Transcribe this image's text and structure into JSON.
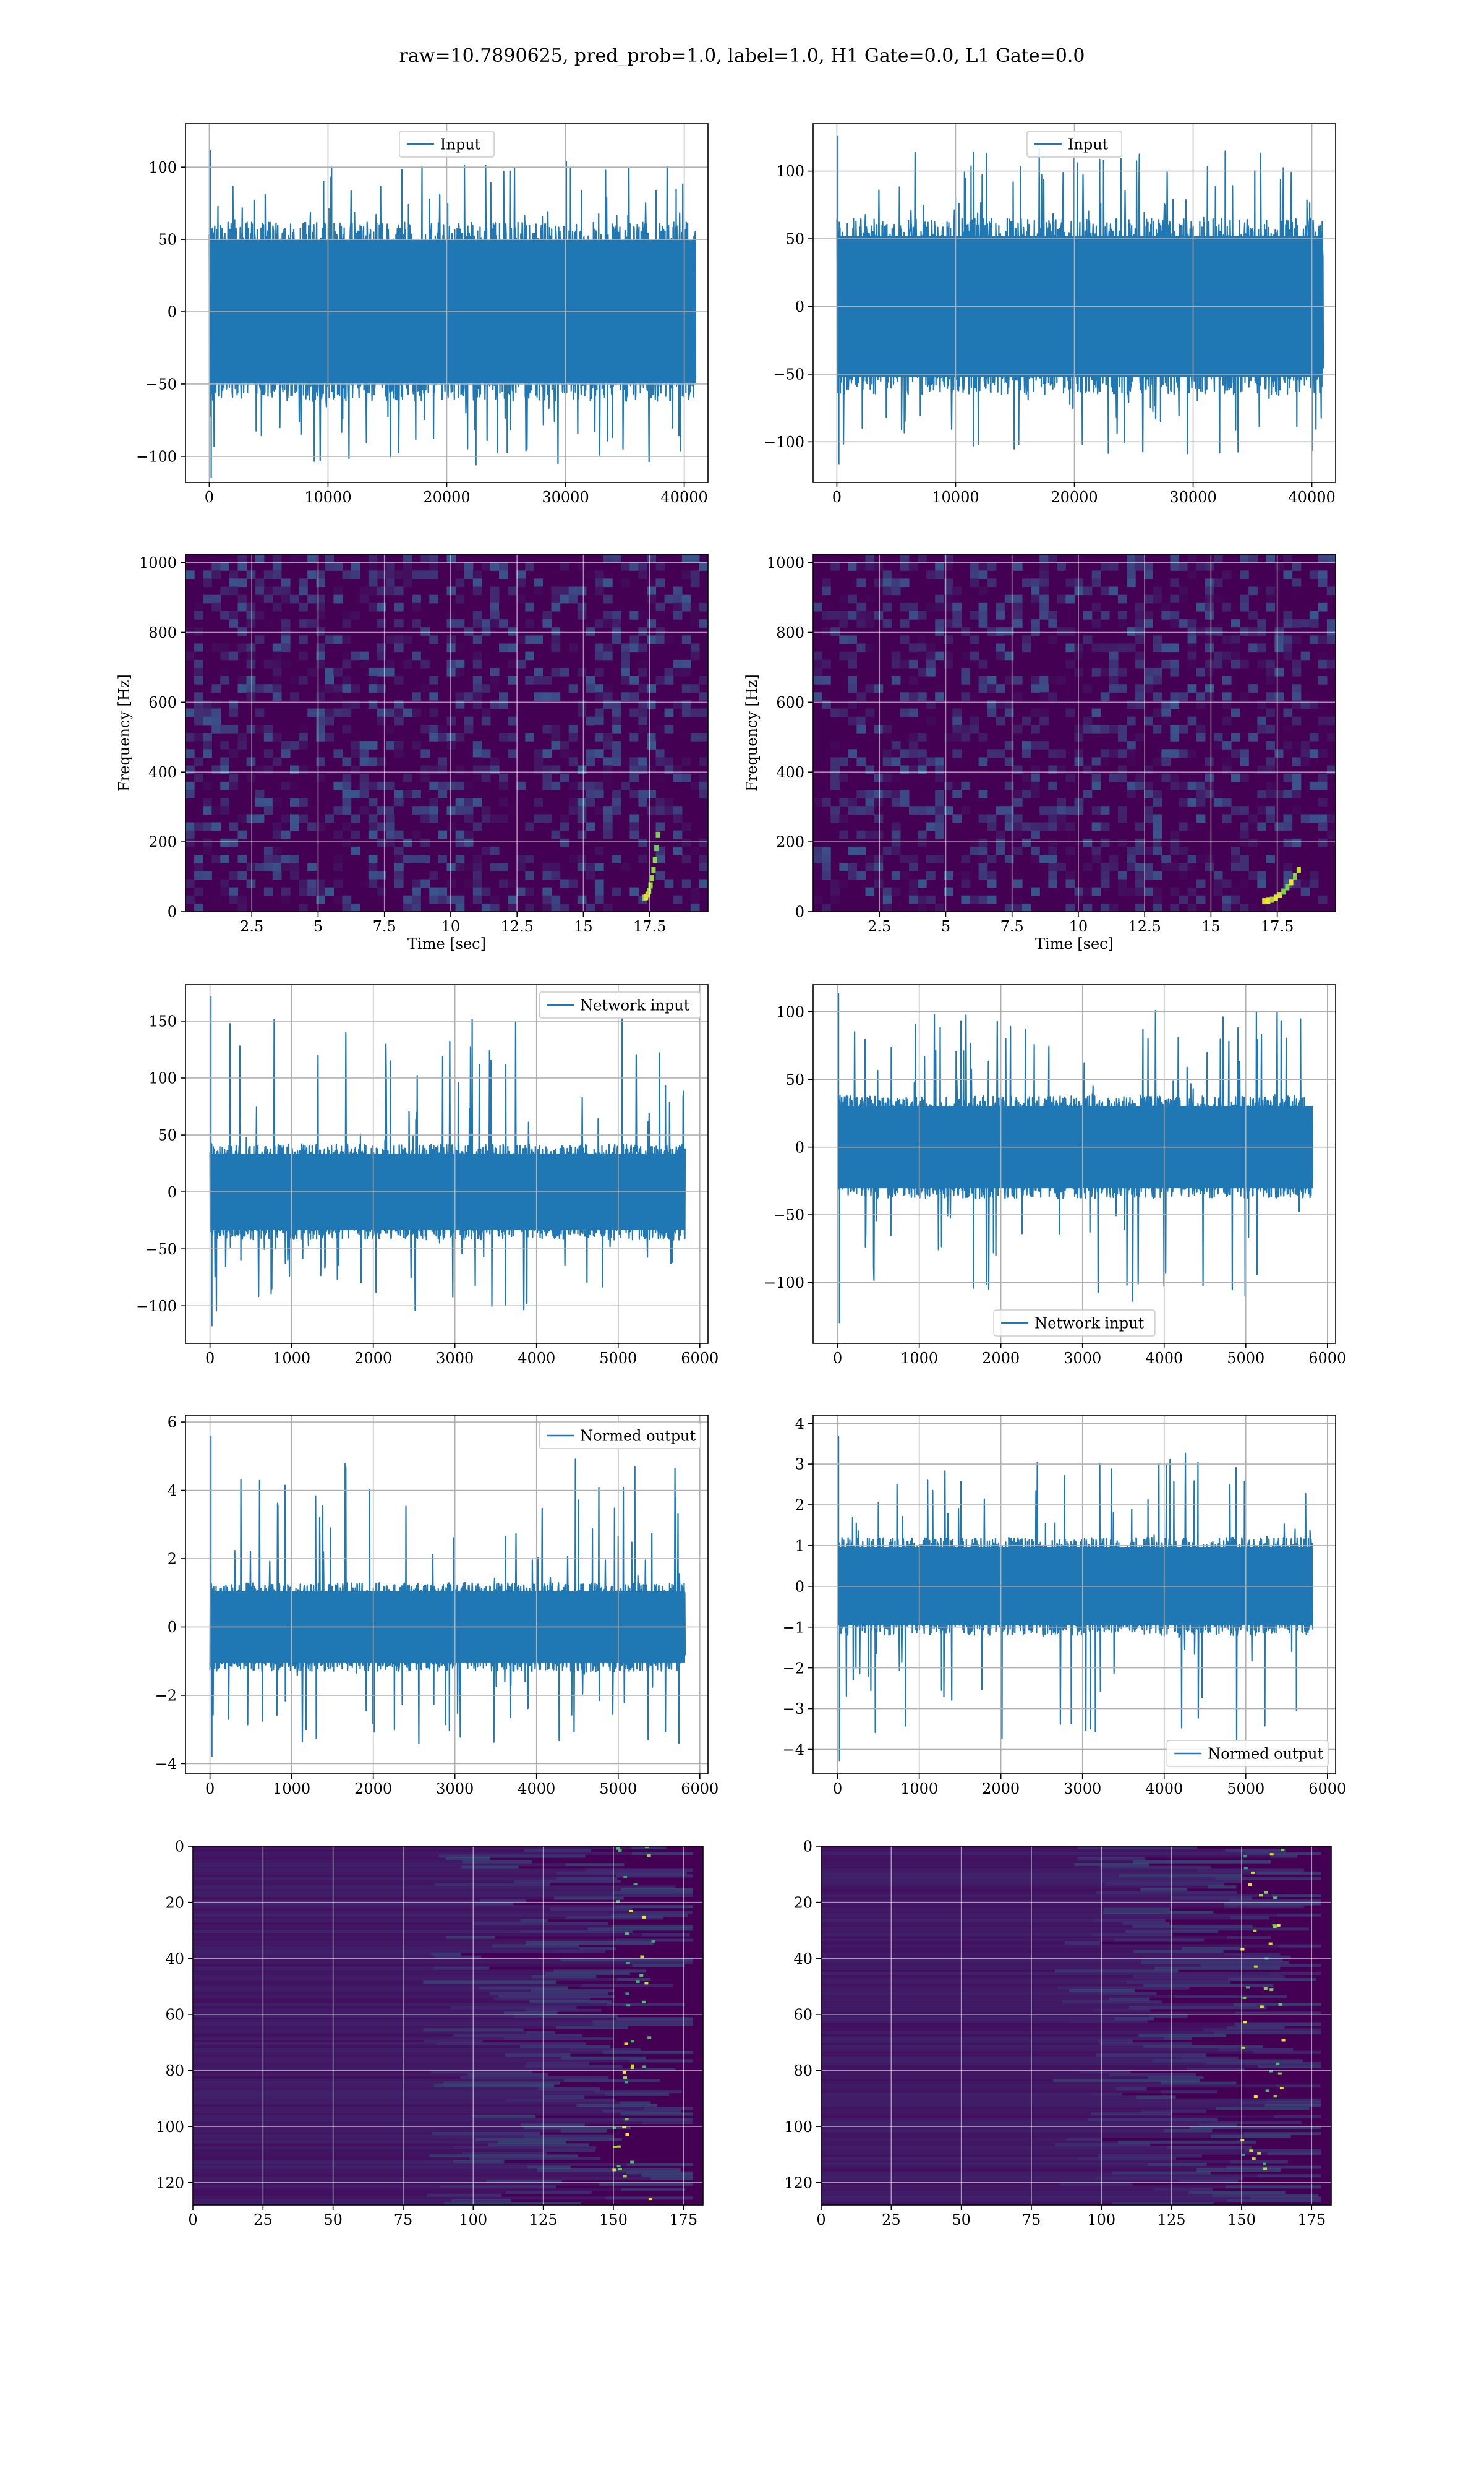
{
  "figure": {
    "suptitle": "raw=10.7890625, pred_prob=1.0, label=1.0, H1 Gate=0.0, L1 Gate=0.0",
    "line_color": "#1f77b4"
  },
  "chart_data": [
    {
      "id": "p1",
      "type": "line",
      "legend": "Input",
      "legend_loc": "upper center",
      "xlim": [
        -2000,
        42000
      ],
      "ylim": [
        -118,
        130
      ],
      "xticks": [
        0,
        10000,
        20000,
        30000,
        40000
      ],
      "yticks": [
        -100,
        -50,
        0,
        50,
        100
      ],
      "grid": true,
      "series": [
        {
          "name": "Input",
          "x_range": [
            0,
            40960
          ],
          "band": [
            -62,
            62
          ],
          "spike_max": 112,
          "spike_min": -115
        }
      ]
    },
    {
      "id": "p2",
      "type": "line",
      "legend": "Input",
      "legend_loc": "upper center",
      "xlim": [
        -2000,
        42000
      ],
      "ylim": [
        -130,
        135
      ],
      "xticks": [
        0,
        10000,
        20000,
        30000,
        40000
      ],
      "yticks": [
        -100,
        -50,
        0,
        50,
        100
      ],
      "grid": true,
      "series": [
        {
          "name": "Input",
          "x_range": [
            0,
            40960
          ],
          "band": [
            -65,
            65
          ],
          "spike_max": 126,
          "spike_min": -117
        }
      ]
    },
    {
      "id": "p3",
      "type": "heatmap",
      "xlabel": "Time [sec]",
      "ylabel": "Frequency [Hz]",
      "xlim": [
        0,
        19.7
      ],
      "ylim": [
        0,
        1024
      ],
      "xticks": [
        2.5,
        5.0,
        7.5,
        10.0,
        12.5,
        15.0,
        17.5
      ],
      "yticks": [
        0,
        200,
        400,
        600,
        800,
        1000
      ],
      "colormap": [
        "#440154",
        "#3b528b",
        "#21918c",
        "#5ec962",
        "#fde725"
      ],
      "features": [
        {
          "kind": "chirp",
          "t": [
            17.3,
            17.8
          ],
          "f": [
            40,
            220
          ]
        }
      ],
      "grid": true
    },
    {
      "id": "p4",
      "type": "heatmap",
      "xlabel": "Time [sec]",
      "ylabel": "Frequency [Hz]",
      "xlim": [
        0,
        19.7
      ],
      "ylim": [
        0,
        1024
      ],
      "xticks": [
        2.5,
        5.0,
        7.5,
        10.0,
        12.5,
        15.0,
        17.5
      ],
      "yticks": [
        0,
        200,
        400,
        600,
        800,
        1000
      ],
      "colormap": [
        "#440154",
        "#3b528b",
        "#21918c",
        "#5ec962",
        "#fde725"
      ],
      "features": [
        {
          "kind": "chirp",
          "t": [
            17.0,
            18.3
          ],
          "f": [
            30,
            120
          ]
        }
      ],
      "grid": true
    },
    {
      "id": "p5",
      "type": "line",
      "legend": "Network input",
      "legend_loc": "upper right",
      "xlim": [
        -300,
        6100
      ],
      "ylim": [
        -133,
        182
      ],
      "xticks": [
        0,
        1000,
        2000,
        3000,
        4000,
        5000,
        6000
      ],
      "yticks": [
        -100,
        -50,
        0,
        50,
        100,
        150
      ],
      "grid": true,
      "series": [
        {
          "name": "Network input",
          "x_range": [
            0,
            5820
          ],
          "band": [
            -42,
            42
          ],
          "spike_max": 172,
          "spike_min": -118
        }
      ]
    },
    {
      "id": "p6",
      "type": "line",
      "legend": "Network input",
      "legend_loc": "lower center",
      "xlim": [
        -300,
        6100
      ],
      "ylim": [
        -145,
        120
      ],
      "xticks": [
        0,
        1000,
        2000,
        3000,
        4000,
        5000,
        6000
      ],
      "yticks": [
        -100,
        -50,
        0,
        50,
        100
      ],
      "grid": true,
      "series": [
        {
          "name": "Network input",
          "x_range": [
            0,
            5820
          ],
          "band": [
            -38,
            38
          ],
          "spike_max": 114,
          "spike_min": -130
        }
      ]
    },
    {
      "id": "p7",
      "type": "line",
      "legend": "Normed output",
      "legend_loc": "upper right",
      "xlim": [
        -300,
        6100
      ],
      "ylim": [
        -4.3,
        6.2
      ],
      "xticks": [
        0,
        1000,
        2000,
        3000,
        4000,
        5000,
        6000
      ],
      "yticks": [
        -4,
        -2,
        0,
        2,
        4,
        6
      ],
      "grid": true,
      "series": [
        {
          "name": "Normed output",
          "x_range": [
            0,
            5820
          ],
          "band": [
            -1.3,
            1.3
          ],
          "spike_max": 5.6,
          "spike_min": -3.8
        }
      ]
    },
    {
      "id": "p8",
      "type": "line",
      "legend": "Normed output",
      "legend_loc": "lower right",
      "xlim": [
        -300,
        6100
      ],
      "ylim": [
        -4.6,
        4.2
      ],
      "xticks": [
        0,
        1000,
        2000,
        3000,
        4000,
        5000,
        6000
      ],
      "yticks": [
        -4,
        -3,
        -2,
        -1,
        0,
        1,
        2,
        3,
        4
      ],
      "grid": true,
      "series": [
        {
          "name": "Normed output",
          "x_range": [
            0,
            5820
          ],
          "band": [
            -1.2,
            1.2
          ],
          "spike_max": 3.7,
          "spike_min": -4.3
        }
      ]
    },
    {
      "id": "p9",
      "type": "heatmap",
      "xlim": [
        0,
        182
      ],
      "ylim": [
        128,
        0
      ],
      "xticks": [
        0,
        25,
        50,
        75,
        100,
        125,
        150,
        175
      ],
      "yticks": [
        0,
        20,
        40,
        60,
        80,
        100,
        120
      ],
      "colormap": [
        "#440154",
        "#3b528b",
        "#21918c",
        "#5ec962",
        "#fde725"
      ],
      "features": [
        {
          "kind": "column_hotspots",
          "x": [
            150,
            165
          ]
        }
      ],
      "grid": true
    },
    {
      "id": "p10",
      "type": "heatmap",
      "xlim": [
        0,
        182
      ],
      "ylim": [
        128,
        0
      ],
      "xticks": [
        0,
        25,
        50,
        75,
        100,
        125,
        150,
        175
      ],
      "yticks": [
        0,
        20,
        40,
        60,
        80,
        100,
        120
      ],
      "colormap": [
        "#440154",
        "#3b528b",
        "#21918c",
        "#5ec962",
        "#fde725"
      ],
      "features": [
        {
          "kind": "column_hotspots",
          "x": [
            150,
            165
          ]
        }
      ],
      "grid": true
    }
  ]
}
